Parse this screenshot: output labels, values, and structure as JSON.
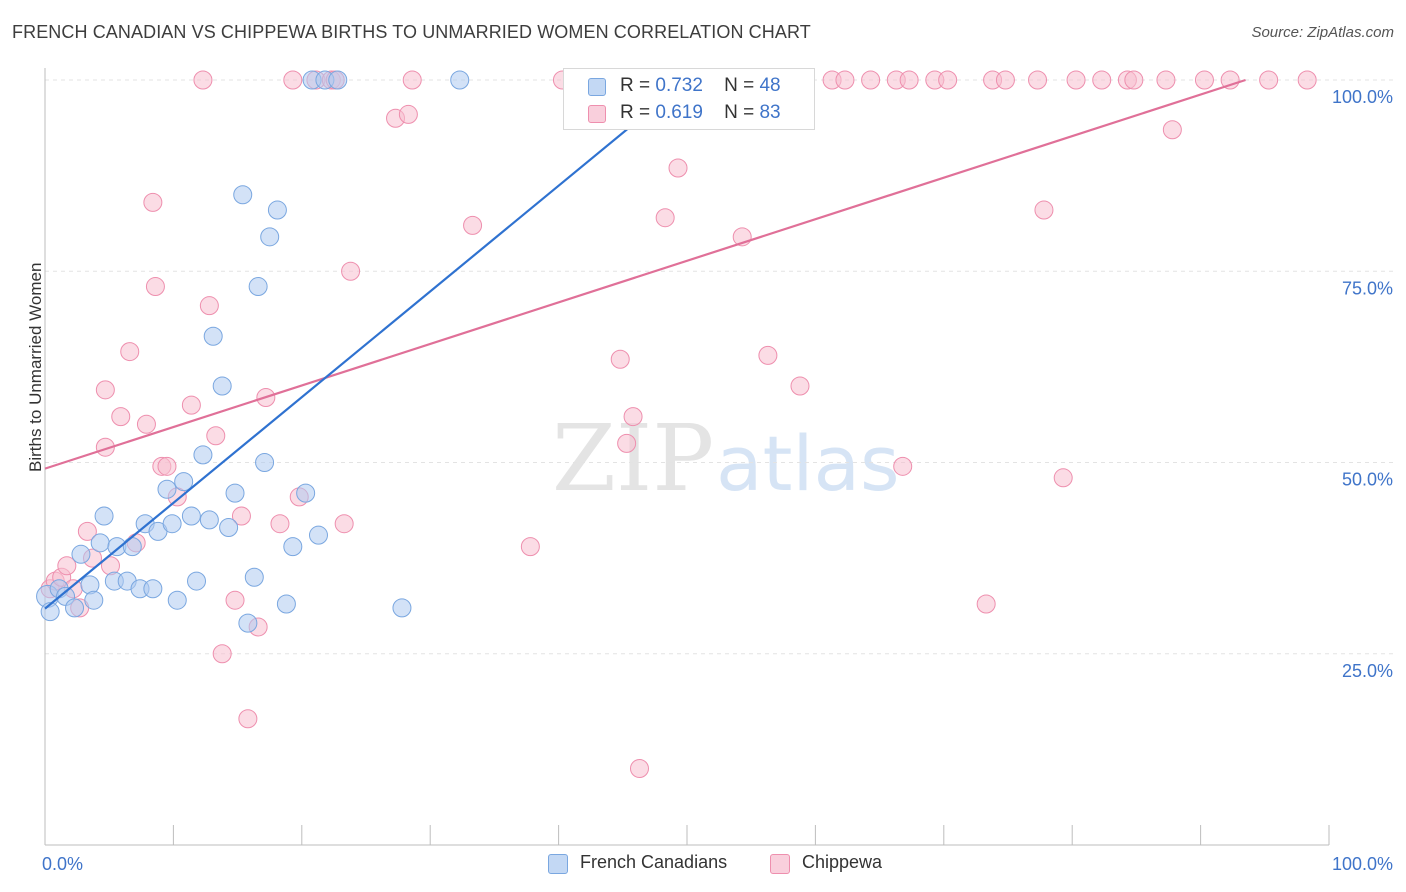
{
  "title": "FRENCH CANADIAN VS CHIPPEWA BIRTHS TO UNMARRIED WOMEN CORRELATION CHART",
  "source": "Source: ZipAtlas.com",
  "watermark": {
    "zip": "ZIP",
    "atlas": "atlas"
  },
  "legend_top": {
    "r_label": "R =",
    "n_label": "N =",
    "rows": [
      {
        "r": "0.732",
        "n": "48"
      },
      {
        "r": "0.619",
        "n": "83"
      }
    ]
  },
  "colors": {
    "blue_fill": "#aecbf0",
    "blue_stroke": "#7aa7e0",
    "blue_line": "#2f72d0",
    "pink_fill": "#f7bfd0",
    "pink_stroke": "#ee8fae",
    "pink_line": "#e07098",
    "axis_text": "#3f74c9"
  },
  "chart_data": {
    "type": "scatter",
    "title": "FRENCH CANADIAN VS CHIPPEWA BIRTHS TO UNMARRIED WOMEN CORRELATION CHART",
    "xlabel": "",
    "ylabel": "Births to Unmarried Women",
    "xlim": [
      0,
      100
    ],
    "ylim": [
      0,
      100
    ],
    "x_tick_labels": [
      "0.0%",
      "100.0%"
    ],
    "y_tick_labels": [
      "25.0%",
      "50.0%",
      "75.0%",
      "100.0%"
    ],
    "y_ticks": [
      25,
      50,
      75,
      100
    ],
    "grid": "horizontal dashed",
    "legend_position": "top-center and bottom",
    "series": [
      {
        "name": "French Canadians",
        "r": 0.732,
        "n": 48,
        "trend": {
          "x": [
            0,
            50
          ],
          "y": [
            30.9,
            100
          ]
        },
        "points": [
          [
            0.2,
            32.5
          ],
          [
            0.4,
            30.5
          ],
          [
            1.1,
            33.5
          ],
          [
            1.6,
            32.5
          ],
          [
            2.3,
            31
          ],
          [
            2.8,
            38
          ],
          [
            3.5,
            34
          ],
          [
            3.8,
            32
          ],
          [
            4.3,
            39.5
          ],
          [
            4.6,
            43
          ],
          [
            5.4,
            34.5
          ],
          [
            5.6,
            39
          ],
          [
            6.4,
            34.5
          ],
          [
            6.8,
            39
          ],
          [
            7.4,
            33.5
          ],
          [
            7.8,
            42
          ],
          [
            8.4,
            33.5
          ],
          [
            8.8,
            41
          ],
          [
            9.5,
            46.5
          ],
          [
            9.9,
            42
          ],
          [
            10.3,
            32
          ],
          [
            10.8,
            47.5
          ],
          [
            11.4,
            43
          ],
          [
            11.8,
            34.5
          ],
          [
            12.3,
            51
          ],
          [
            12.8,
            42.5
          ],
          [
            13.1,
            66.5
          ],
          [
            13.8,
            60
          ],
          [
            14.3,
            41.5
          ],
          [
            14.8,
            46
          ],
          [
            15.4,
            85
          ],
          [
            15.8,
            29
          ],
          [
            16.3,
            35
          ],
          [
            16.6,
            73
          ],
          [
            17.1,
            50
          ],
          [
            17.5,
            79.5
          ],
          [
            18.1,
            83
          ],
          [
            18.8,
            31.5
          ],
          [
            19.3,
            39
          ],
          [
            20.3,
            46
          ],
          [
            21.3,
            40.5
          ],
          [
            20.8,
            100
          ],
          [
            21.8,
            100
          ],
          [
            22.8,
            100
          ],
          [
            27.8,
            31
          ],
          [
            32.3,
            100
          ],
          [
            46.8,
            100
          ],
          [
            55.3,
            100
          ]
        ]
      },
      {
        "name": "Chippewa",
        "r": 0.619,
        "n": 83,
        "trend": {
          "x": [
            0,
            93.5
          ],
          "y": [
            49.2,
            100
          ]
        },
        "points": [
          [
            0.4,
            33.5
          ],
          [
            0.8,
            34.5
          ],
          [
            1.3,
            35
          ],
          [
            1.7,
            36.5
          ],
          [
            2.2,
            33.5
          ],
          [
            2.7,
            31
          ],
          [
            3.3,
            41
          ],
          [
            3.7,
            37.5
          ],
          [
            4.7,
            52
          ],
          [
            4.7,
            59.5
          ],
          [
            5.1,
            36.5
          ],
          [
            5.9,
            56
          ],
          [
            6.6,
            64.5
          ],
          [
            7.1,
            39.5
          ],
          [
            7.9,
            55
          ],
          [
            8.4,
            84
          ],
          [
            8.6,
            73
          ],
          [
            9.1,
            49.5
          ],
          [
            9.5,
            49.5
          ],
          [
            10.3,
            45.5
          ],
          [
            11.4,
            57.5
          ],
          [
            12.3,
            100
          ],
          [
            12.8,
            70.5
          ],
          [
            13.3,
            53.5
          ],
          [
            13.8,
            25
          ],
          [
            14.8,
            32
          ],
          [
            15.3,
            43
          ],
          [
            15.8,
            16.5
          ],
          [
            16.6,
            28.5
          ],
          [
            17.2,
            58.5
          ],
          [
            18.3,
            42
          ],
          [
            19.3,
            100
          ],
          [
            19.8,
            45.5
          ],
          [
            21.1,
            100
          ],
          [
            22.3,
            100
          ],
          [
            22.6,
            100
          ],
          [
            23.3,
            42
          ],
          [
            23.8,
            75
          ],
          [
            27.3,
            95
          ],
          [
            28.3,
            95.5
          ],
          [
            28.6,
            100
          ],
          [
            33.3,
            81
          ],
          [
            37.8,
            39
          ],
          [
            40.3,
            100
          ],
          [
            43.3,
            100
          ],
          [
            44.8,
            63.5
          ],
          [
            45.3,
            52.5
          ],
          [
            45.8,
            56
          ],
          [
            46.3,
            10
          ],
          [
            47.3,
            100
          ],
          [
            48.3,
            82
          ],
          [
            49.3,
            88.5
          ],
          [
            50.8,
            100
          ],
          [
            52.3,
            100
          ],
          [
            54.3,
            79.5
          ],
          [
            54.8,
            100
          ],
          [
            56.3,
            64
          ],
          [
            58.3,
            100
          ],
          [
            58.8,
            60
          ],
          [
            61.3,
            100
          ],
          [
            62.3,
            100
          ],
          [
            64.3,
            100
          ],
          [
            66.3,
            100
          ],
          [
            66.8,
            49.5
          ],
          [
            67.3,
            100
          ],
          [
            69.3,
            100
          ],
          [
            70.3,
            100
          ],
          [
            73.3,
            31.5
          ],
          [
            73.8,
            100
          ],
          [
            74.8,
            100
          ],
          [
            77.3,
            100
          ],
          [
            77.8,
            83
          ],
          [
            79.3,
            48
          ],
          [
            80.3,
            100
          ],
          [
            82.3,
            100
          ],
          [
            84.3,
            100
          ],
          [
            84.8,
            100
          ],
          [
            87.3,
            100
          ],
          [
            87.8,
            93.5
          ],
          [
            90.3,
            100
          ],
          [
            92.3,
            100
          ],
          [
            95.3,
            100
          ],
          [
            98.3,
            100
          ]
        ]
      }
    ]
  }
}
